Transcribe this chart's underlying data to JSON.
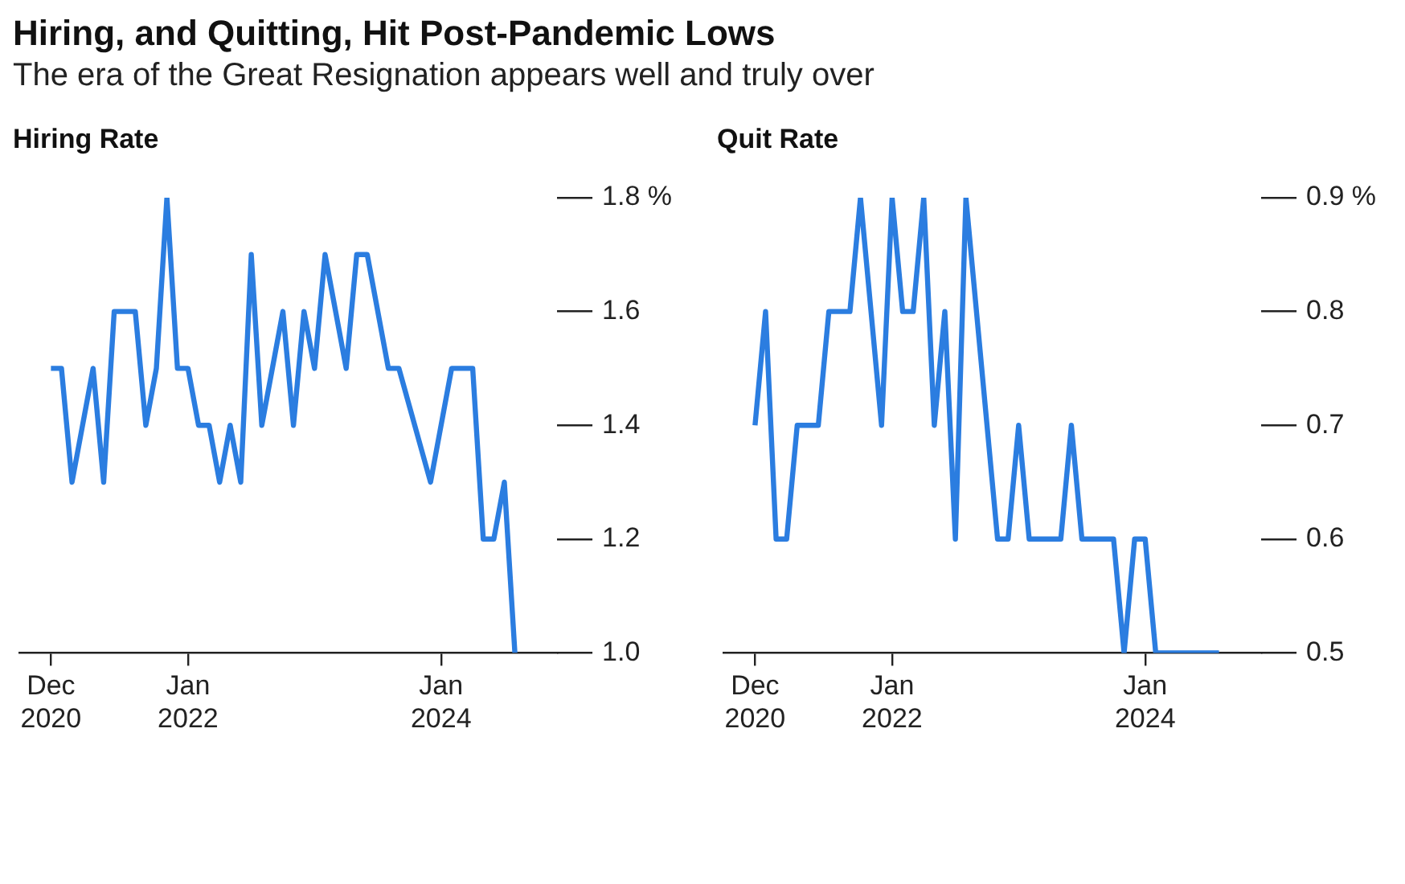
{
  "chart_data": [
    {
      "type": "other",
      "title": "Hiring, and Quitting, Hit Post-Pandemic Lows",
      "subtitle": "The era of the Great Resignation appears well and truly over"
    },
    {
      "type": "line",
      "title": "Hiring Rate",
      "marker": "none",
      "line_style": "solid",
      "legend": false,
      "x": [
        "2020-12",
        "2021-01",
        "2021-02",
        "2021-04",
        "2021-05",
        "2021-06",
        "2021-08",
        "2021-09",
        "2021-10",
        "2021-11",
        "2021-12",
        "2022-01",
        "2022-02",
        "2022-03",
        "2022-04",
        "2022-05",
        "2022-06",
        "2022-07",
        "2022-08",
        "2022-10",
        "2022-11",
        "2022-12",
        "2023-01",
        "2023-02",
        "2023-04",
        "2023-05",
        "2023-06",
        "2023-08",
        "2023-09",
        "2023-12",
        "2024-02",
        "2024-04",
        "2024-05",
        "2024-06",
        "2024-07",
        "2024-08"
      ],
      "series": [
        {
          "color": "#2b7de0",
          "values": [
            1.5,
            1.5,
            1.3,
            1.5,
            1.3,
            1.6,
            1.6,
            1.4,
            1.5,
            1.8,
            1.5,
            1.5,
            1.4,
            1.4,
            1.3,
            1.4,
            1.3,
            1.7,
            1.4,
            1.6,
            1.4,
            1.6,
            1.5,
            1.7,
            1.5,
            1.7,
            1.7,
            1.5,
            1.5,
            1.3,
            1.5,
            1.5,
            1.2,
            1.2,
            1.3,
            1.0
          ]
        }
      ],
      "xlim": [
        "2020-09",
        "2024-12"
      ],
      "xticks": [
        {
          "value": "2020-12",
          "label": "Dec 2020"
        },
        {
          "value": "2022-01",
          "label": "Jan 2022"
        },
        {
          "value": "2024-01",
          "label": "Jan 2024"
        }
      ],
      "ylim": [
        1.0,
        1.8
      ],
      "yticks": [
        {
          "value": 1.0,
          "label": "1.0"
        },
        1.2,
        1.4,
        1.6,
        {
          "value": 1.8,
          "label": "1.8 %"
        }
      ]
    },
    {
      "type": "line",
      "title": "Quit Rate",
      "marker": "none",
      "line_style": "solid",
      "legend": false,
      "x": [
        "2020-12",
        "2021-01",
        "2021-02",
        "2021-03",
        "2021-04",
        "2021-06",
        "2021-07",
        "2021-09",
        "2021-10",
        "2021-12",
        "2022-01",
        "2022-02",
        "2022-03",
        "2022-04",
        "2022-05",
        "2022-06",
        "2022-07",
        "2022-08",
        "2022-11",
        "2022-12",
        "2023-01",
        "2023-02",
        "2023-05",
        "2023-06",
        "2023-07",
        "2023-10",
        "2023-11",
        "2023-12",
        "2024-01",
        "2024-02",
        "2024-08"
      ],
      "series": [
        {
          "color": "#2b7de0",
          "values": [
            0.7,
            0.8,
            0.6,
            0.6,
            0.7,
            0.7,
            0.8,
            0.8,
            0.9,
            0.7,
            0.9,
            0.8,
            0.8,
            0.9,
            0.7,
            0.8,
            0.6,
            0.9,
            0.6,
            0.6,
            0.7,
            0.6,
            0.6,
            0.7,
            0.6,
            0.6,
            0.5,
            0.6,
            0.6,
            0.5,
            0.5
          ]
        }
      ],
      "xlim": [
        "2020-09",
        "2024-12"
      ],
      "xticks": [
        {
          "value": "2020-12",
          "label": "Dec 2020"
        },
        {
          "value": "2022-01",
          "label": "Jan 2022"
        },
        {
          "value": "2024-01",
          "label": "Jan 2024"
        }
      ],
      "ylim": [
        0.5,
        0.9
      ],
      "yticks": [
        0.5,
        0.6,
        0.7,
        0.8,
        {
          "value": 0.9,
          "label": "0.9 %"
        }
      ]
    }
  ]
}
